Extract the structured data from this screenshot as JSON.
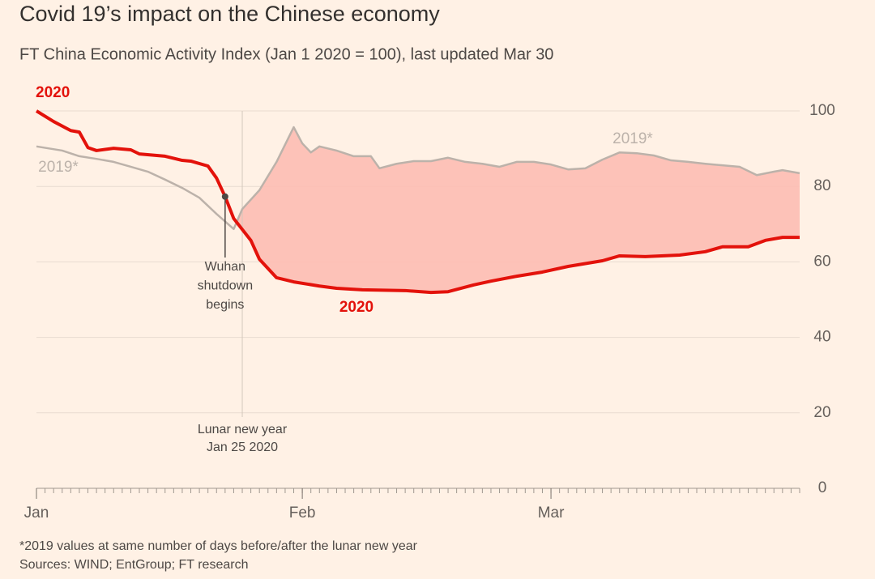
{
  "chart_data": {
    "type": "line",
    "title": "Covid 19’s impact on the Chinese economy",
    "subtitle": "FT China Economic Activity Index (Jan 1 2020 = 100), last updated Mar 30",
    "footnote": "*2019 values at same number of days before/after the lunar new year",
    "source": "Sources: WIND; EntGroup; FT research",
    "xlim": [
      0,
      89
    ],
    "xticks": [
      {
        "value": 0,
        "label": "Jan"
      },
      {
        "value": 31,
        "label": "Feb"
      },
      {
        "value": 60,
        "label": "Mar"
      }
    ],
    "ylim": [
      0,
      100
    ],
    "yticks": [
      0,
      20,
      40,
      60,
      80,
      100
    ],
    "grid": true,
    "fill_between": {
      "color": "#fdbcb2"
    },
    "series": [
      {
        "name": "2020",
        "color": "#e3120b",
        "x": [
          0,
          2,
          4,
          5,
          6,
          7,
          9,
          11,
          12,
          15,
          17,
          18,
          20,
          21,
          22,
          23,
          25,
          26,
          28,
          30,
          33,
          35,
          38,
          43,
          46,
          48,
          51,
          53,
          56,
          59,
          62,
          66,
          68,
          71,
          75,
          78,
          80,
          83,
          85,
          87,
          89
        ],
        "values": [
          100,
          97.2,
          94.8,
          94.4,
          90.3,
          89.5,
          90.1,
          89.7,
          88.6,
          88,
          86.9,
          86.7,
          85.4,
          82.2,
          77.3,
          71.5,
          65.7,
          60.7,
          55.8,
          54.7,
          53.6,
          53,
          52.6,
          52.4,
          51.9,
          52.1,
          53.9,
          54.9,
          56.2,
          57.3,
          58.8,
          60.3,
          61.6,
          61.4,
          61.8,
          62.7,
          64,
          64,
          65.7,
          66.5,
          66.5
        ]
      },
      {
        "name": "2019*",
        "color": "#bcb2aa",
        "x": [
          0,
          3,
          5,
          7,
          9,
          11,
          13,
          15,
          17,
          19,
          21,
          23,
          24,
          26,
          28,
          30,
          31,
          32,
          33,
          35,
          37,
          39,
          40,
          42,
          44,
          46,
          48,
          50,
          52,
          54,
          56,
          58,
          60,
          62,
          64,
          66,
          68,
          70,
          72,
          74,
          76,
          78,
          80,
          82,
          84,
          86,
          87,
          89
        ],
        "values": [
          90.6,
          89.5,
          88,
          87.3,
          86.5,
          85.2,
          83.9,
          81.8,
          79.6,
          77,
          72.7,
          68.7,
          74,
          79,
          86.5,
          95.7,
          91.4,
          89,
          90.6,
          89.5,
          88,
          88,
          84.8,
          86,
          86.7,
          86.7,
          87.6,
          86.5,
          86,
          85.2,
          86.5,
          86.5,
          85.8,
          84.5,
          84.8,
          87.1,
          89,
          88.8,
          88.2,
          86.9,
          86.5,
          86,
          85.6,
          85.2,
          83,
          83.9,
          84.3,
          83.5
        ]
      }
    ],
    "annotations": [
      {
        "text": [
          "Wuhan",
          "shutdown",
          "begins"
        ],
        "x": 22,
        "y": 77.3
      },
      {
        "text": [
          "Lunar new year",
          "Jan 25 2020"
        ],
        "x": 24
      }
    ]
  }
}
